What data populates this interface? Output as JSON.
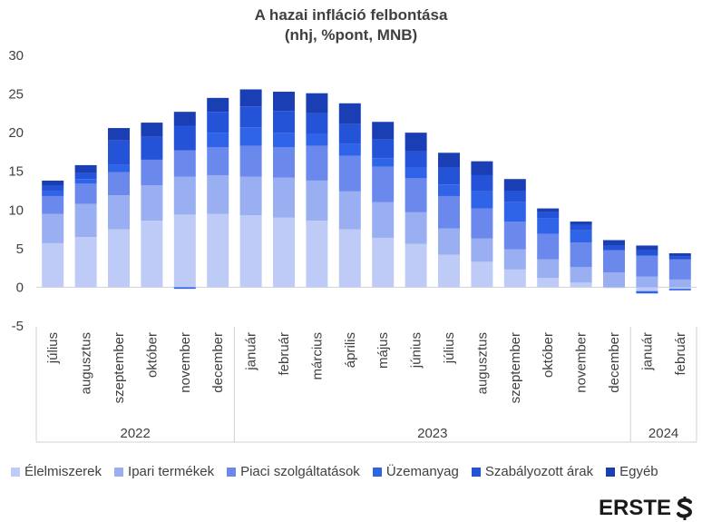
{
  "title_line1": "A hazai infláció felbontása",
  "title_line2": "(nhj, %pont, MNB)",
  "logo_text": "ERSTE",
  "colors": {
    "Élelmiszerek": "#bfcbf7",
    "Ipari termékek": "#9aaef2",
    "Piaci szolgáltatások": "#6b88ec",
    "Üzemanyag": "#2f63e8",
    "Szabályozott árak": "#2553d8",
    "Egyéb": "#1a3fb5"
  },
  "chart_data": {
    "type": "bar",
    "stacked": true,
    "title": "A hazai infláció felbontása (nhj, %pont, MNB)",
    "ylim": [
      -5,
      30
    ],
    "yticks": [
      -5,
      0,
      5,
      10,
      15,
      20,
      25,
      30
    ],
    "categories": [
      "július",
      "augusztus",
      "szeptember",
      "október",
      "november",
      "december",
      "január",
      "február",
      "március",
      "április",
      "május",
      "június",
      "július",
      "augusztus",
      "szeptember",
      "október",
      "november",
      "december",
      "január",
      "február"
    ],
    "year_groups": [
      {
        "label": "2022",
        "count": 6
      },
      {
        "label": "2023",
        "count": 12
      },
      {
        "label": "2024",
        "count": 2
      }
    ],
    "series": [
      {
        "name": "Élelmiszerek",
        "values": [
          5.7,
          6.5,
          7.5,
          8.6,
          9.4,
          9.5,
          9.3,
          9.0,
          8.6,
          7.5,
          6.4,
          5.6,
          4.2,
          3.3,
          2.3,
          1.2,
          0.6,
          -0.1,
          -0.5,
          -0.2
        ]
      },
      {
        "name": "Ipari termékek",
        "values": [
          3.8,
          4.3,
          4.4,
          4.6,
          4.9,
          5.0,
          5.0,
          5.2,
          5.2,
          4.9,
          4.6,
          4.1,
          3.4,
          3.0,
          2.6,
          2.4,
          2.0,
          1.9,
          1.4,
          1.0
        ]
      },
      {
        "name": "Piaci szolgáltatások",
        "values": [
          2.3,
          2.6,
          3.0,
          3.3,
          3.4,
          3.6,
          4.0,
          3.9,
          4.5,
          4.6,
          4.6,
          4.4,
          4.2,
          3.9,
          3.6,
          3.3,
          3.2,
          2.9,
          2.7,
          2.6
        ]
      },
      {
        "name": "Üzemanyag",
        "values": [
          0.6,
          0.6,
          1.0,
          0.0,
          -0.2,
          1.9,
          2.4,
          1.9,
          1.6,
          1.6,
          1.1,
          1.4,
          1.5,
          2.2,
          2.5,
          2.0,
          1.6,
          0.0,
          -0.3,
          -0.2
        ]
      },
      {
        "name": "Szabályozott árak",
        "values": [
          0.7,
          0.8,
          3.1,
          3.0,
          3.2,
          2.7,
          2.7,
          2.8,
          2.6,
          2.5,
          2.4,
          2.1,
          2.2,
          2.1,
          1.5,
          0.8,
          0.7,
          0.6,
          0.7,
          0.4
        ]
      },
      {
        "name": "Egyéb",
        "values": [
          0.7,
          1.0,
          1.6,
          1.8,
          1.8,
          1.8,
          2.2,
          2.5,
          2.6,
          2.7,
          2.3,
          2.4,
          1.9,
          1.8,
          1.5,
          0.5,
          0.4,
          0.7,
          0.6,
          0.4
        ]
      }
    ],
    "legend_position": "bottom"
  }
}
